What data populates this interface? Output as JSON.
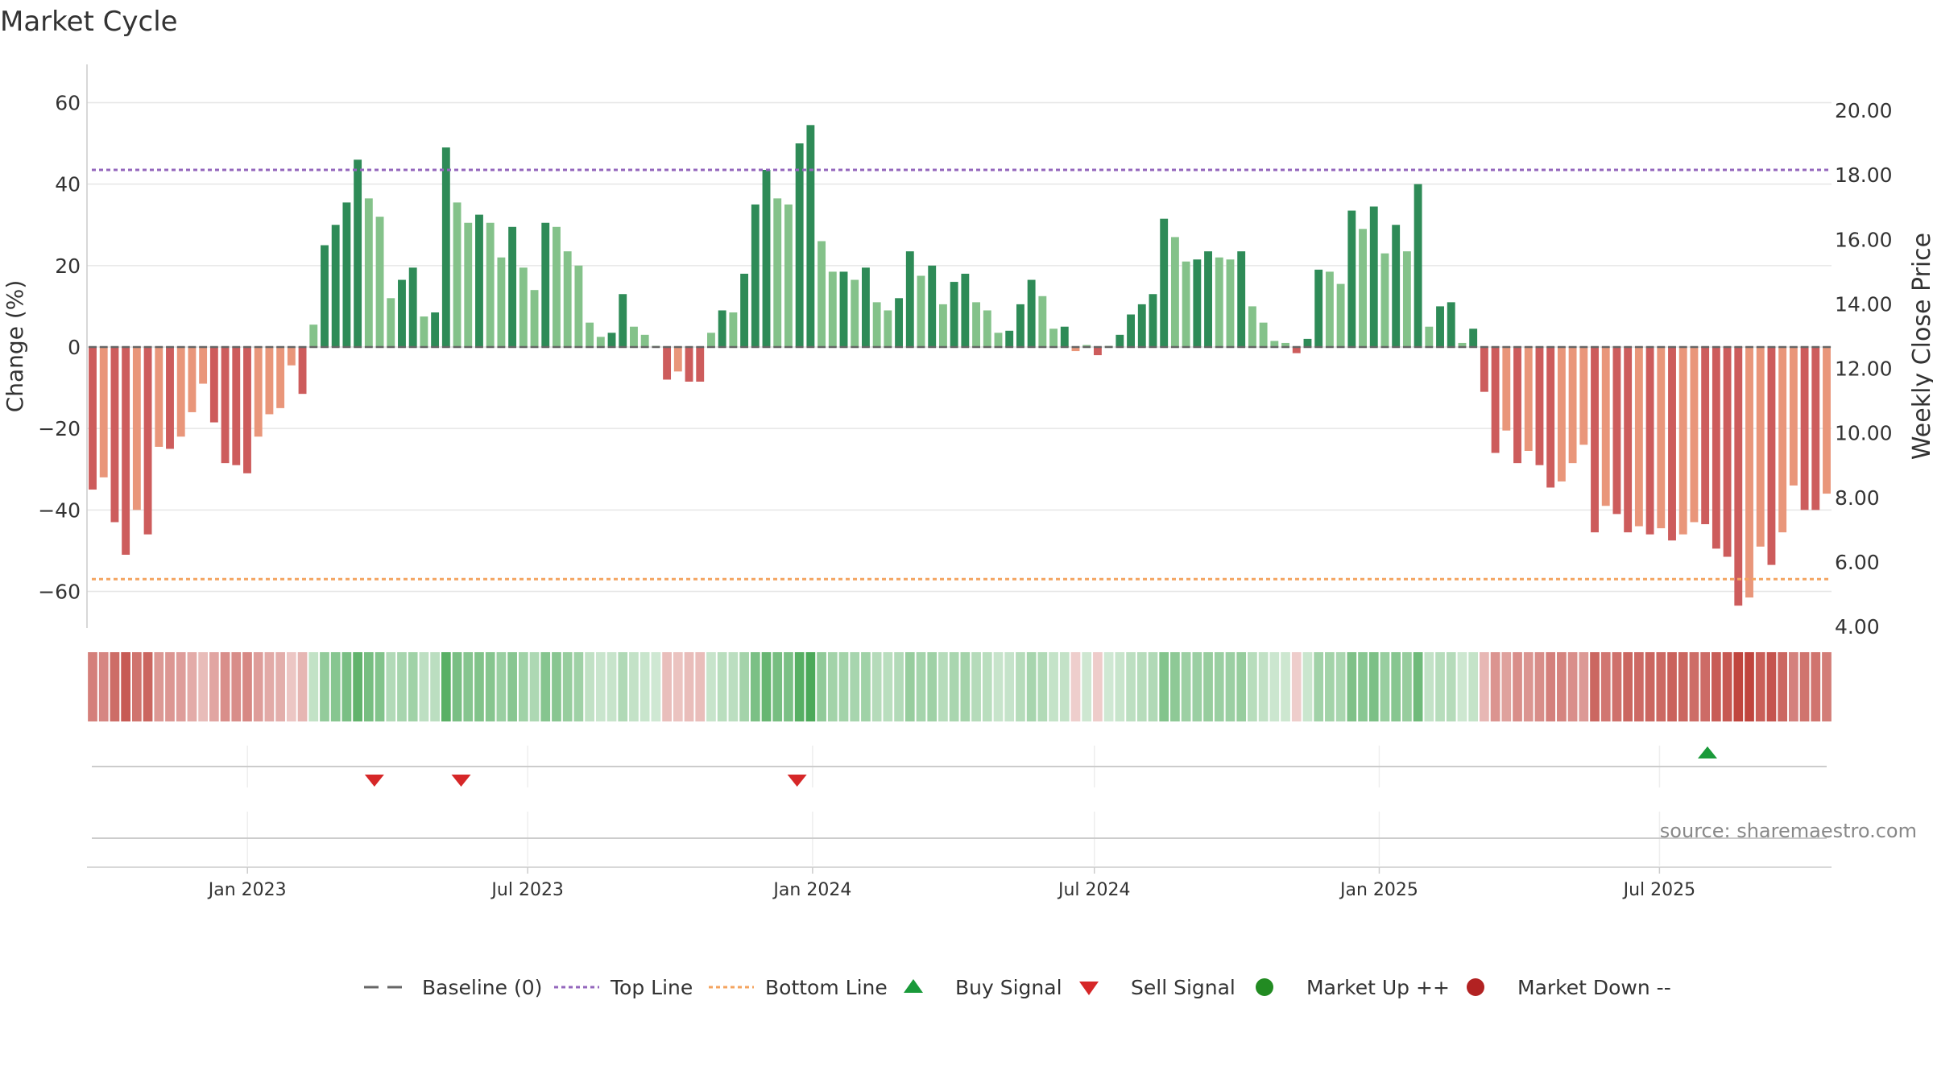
{
  "title": "Market Cycle",
  "source": "source: sharemaestro.com",
  "colors": {
    "strong_up": "#2e8b57",
    "weak_up": "#84c28a",
    "strong_down": "#cd5c5c",
    "weak_down": "#e9967a",
    "top_line": "#9467bd",
    "bottom_line": "#f4a460",
    "baseline": "#666666",
    "buy": "#1a9a3a",
    "sell": "#d62728",
    "market_up": "#228b22",
    "market_down": "#b22222"
  },
  "legend": [
    {
      "label": "Baseline (0)",
      "symbol": "dash",
      "color_key": "baseline"
    },
    {
      "label": "Top Line",
      "symbol": "dot-purple",
      "color_key": "top_line"
    },
    {
      "label": "Bottom Line",
      "symbol": "dot-orange",
      "color_key": "bottom_line"
    },
    {
      "label": "Buy Signal",
      "symbol": "triangle-up",
      "color_key": "buy"
    },
    {
      "label": "Sell Signal",
      "symbol": "triangle-down",
      "color_key": "sell"
    },
    {
      "label": "Market Up ++",
      "symbol": "circle",
      "color_key": "market_up"
    },
    {
      "label": "Market Down --",
      "symbol": "circle",
      "color_key": "market_down"
    }
  ],
  "chart_data": {
    "type": "bar",
    "ylabel_left": "Change (%)",
    "ylabel_right": "Weekly Close Price",
    "ylim_left": [
      -69,
      69
    ],
    "yticks_left": [
      60,
      40,
      20,
      0,
      -20,
      -40,
      -60
    ],
    "ytick_labels_left": [
      "60",
      "40",
      "20",
      "0",
      "−20",
      "−40",
      "−60"
    ],
    "ylim_right": [
      4.0,
      20.0
    ],
    "yticks_right": [
      "20.00",
      "18.00",
      "16.00",
      "14.00",
      "12.00",
      "10.00",
      "8.00",
      "6.00",
      "4.00"
    ],
    "x_start": "2022-09-23",
    "x_end": "2025-10-17",
    "x_ticks": [
      {
        "date": "2023-01-01",
        "label": "Jan 2023"
      },
      {
        "date": "2023-07-01",
        "label": "Jul 2023"
      },
      {
        "date": "2024-01-01",
        "label": "Jan 2024"
      },
      {
        "date": "2024-07-01",
        "label": "Jul 2024"
      },
      {
        "date": "2025-01-01",
        "label": "Jan 2025"
      },
      {
        "date": "2025-07-01",
        "label": "Jul 2025"
      }
    ],
    "top_line": 43.5,
    "bottom_line": -57,
    "grid": true,
    "legend_position": "bottom",
    "values": [
      -35,
      -32,
      -43,
      -51,
      -40,
      -46,
      -24.5,
      -25,
      -22,
      -16,
      -9,
      -18.5,
      -28.5,
      -29,
      -31,
      -22,
      -16.5,
      -15,
      -4.5,
      -11.5,
      5.5,
      25,
      30,
      35.5,
      46,
      36.5,
      32,
      12,
      16.5,
      19.5,
      7.5,
      8.5,
      49,
      35.5,
      30.5,
      32.5,
      30.5,
      22,
      29.5,
      19.5,
      14,
      30.5,
      29.5,
      23.5,
      20,
      6,
      2.5,
      3.5,
      13,
      5,
      3,
      0,
      -8,
      -6,
      -8.5,
      -8.5,
      3.5,
      9,
      8.5,
      18,
      35,
      43.5,
      36.5,
      35,
      50,
      54.5,
      26,
      18.5,
      18.5,
      16.5,
      19.5,
      11,
      9,
      12,
      23.5,
      17.5,
      20,
      10.5,
      16,
      18,
      11,
      9,
      3.5,
      4,
      10.5,
      16.5,
      12.5,
      4.5,
      5,
      -1,
      0.5,
      -2,
      0,
      3,
      8,
      10.5,
      13,
      31.5,
      27,
      21,
      21.5,
      23.5,
      22,
      21.5,
      23.5,
      10,
      6,
      1.5,
      1,
      -1.5,
      2,
      19,
      18.5,
      15.5,
      33.5,
      29,
      34.5,
      23,
      30,
      23.5,
      40,
      5,
      10,
      11,
      1,
      4.5,
      -11,
      -26,
      -20.5,
      -28.5,
      -25.5,
      -29,
      -34.5,
      -33,
      -28.5,
      -24,
      -45.5,
      -39,
      -41,
      -45.5,
      -44,
      -46,
      -44.5,
      -47.5,
      -46,
      -43,
      -43.5,
      -49.5,
      -51.5,
      -63.5,
      -61.5,
      -49,
      -53.5,
      -45.5,
      -34,
      -40,
      -40,
      -36
    ],
    "signals": [
      {
        "type": "sell",
        "date": "2023-03-24"
      },
      {
        "type": "sell",
        "date": "2023-05-19"
      },
      {
        "type": "sell",
        "date": "2023-12-22"
      },
      {
        "type": "buy",
        "date": "2025-08-01"
      }
    ]
  }
}
